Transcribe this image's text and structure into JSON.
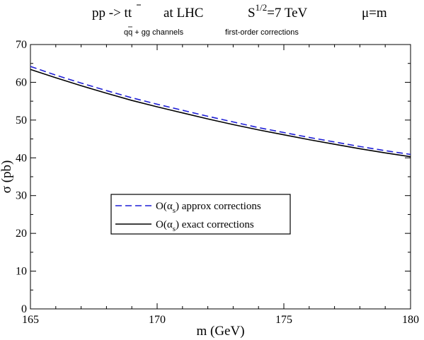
{
  "header": {
    "process_prefix": "pp -> t",
    "process_tbar": "t",
    "at_lhc": "at  LHC",
    "energy_base": "S",
    "energy_exp": "1/2",
    "energy_value": "=7 TeV",
    "scale": "μ=m",
    "channels_q": "q",
    "channels_qbar": "q",
    "channels_rest": " + gg channels",
    "order": "first-order corrections"
  },
  "chart_data": {
    "type": "line",
    "xlabel": "m (GeV)",
    "ylabel": "σ (pb)",
    "xlim": [
      165,
      180
    ],
    "ylim": [
      0,
      70
    ],
    "x_ticks": [
      165,
      170,
      175,
      180
    ],
    "y_ticks": [
      0,
      10,
      20,
      30,
      40,
      50,
      60,
      70
    ],
    "grid": false,
    "legend_position": "center-left",
    "x": [
      165,
      166,
      167,
      168,
      169,
      170,
      171,
      172,
      173,
      174,
      175,
      176,
      177,
      178,
      179,
      180
    ],
    "series": [
      {
        "name": "O(α_s) approx corrections",
        "legend_main": "O(α",
        "legend_sub": "s",
        "legend_rest": ") approx corrections",
        "style": "dashed",
        "color": "#1f1fd6",
        "values": [
          64.2,
          61.9,
          59.8,
          57.8,
          55.9,
          54.2,
          52.6,
          51.0,
          49.5,
          48.0,
          46.7,
          45.4,
          44.2,
          43.0,
          41.9,
          40.9
        ]
      },
      {
        "name": "O(α_s) exact corrections",
        "legend_main": "O(α",
        "legend_sub": "s",
        "legend_rest": ")  exact corrections",
        "style": "solid",
        "color": "#000000",
        "values": [
          63.4,
          61.2,
          59.1,
          57.1,
          55.2,
          53.5,
          51.9,
          50.3,
          48.8,
          47.4,
          46.1,
          44.8,
          43.6,
          42.4,
          41.3,
          40.3
        ]
      }
    ]
  }
}
